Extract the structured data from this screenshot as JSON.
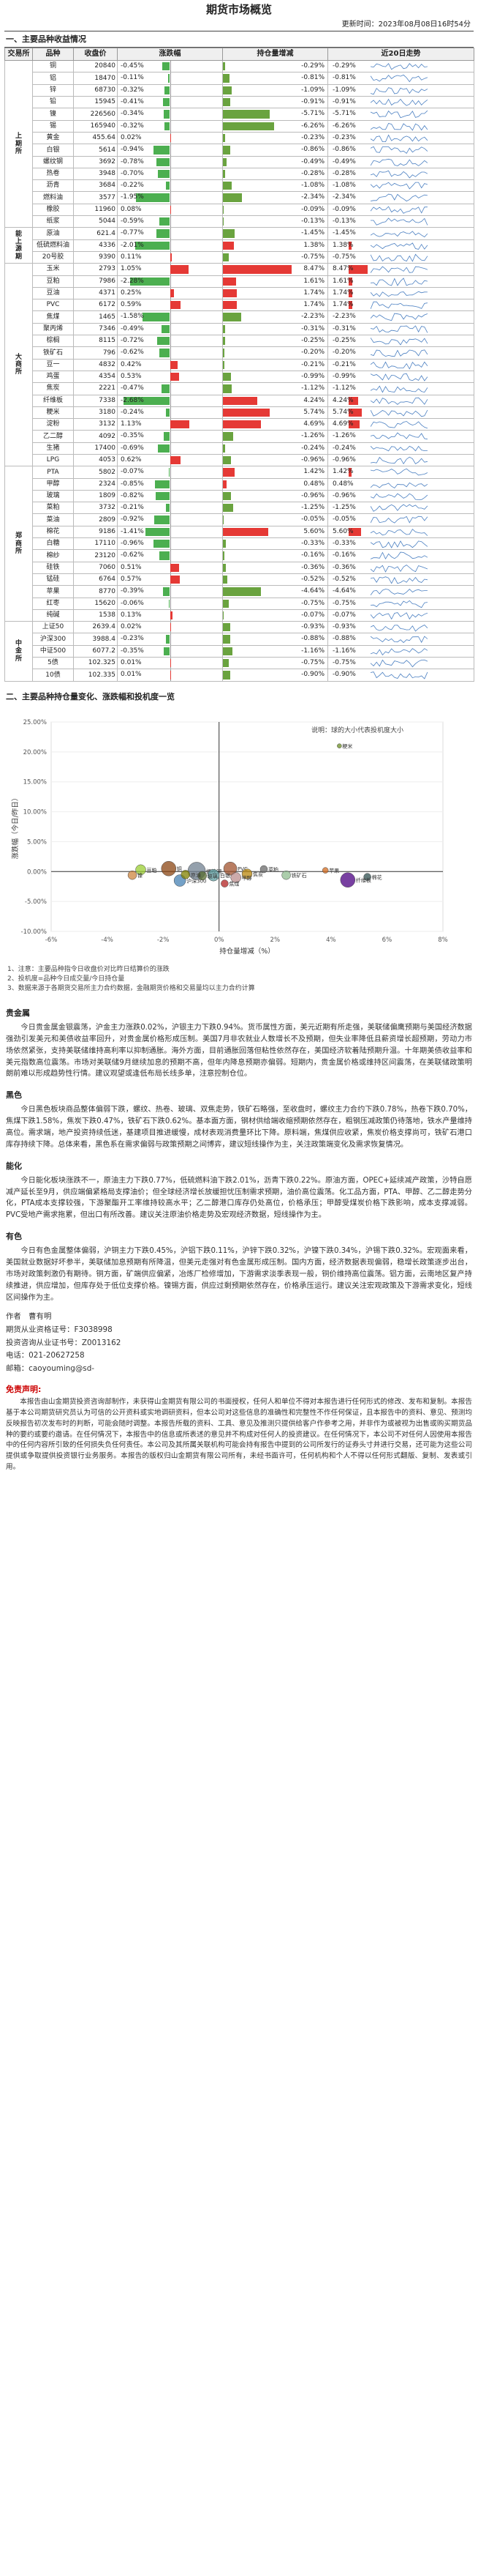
{
  "header": {
    "title": "期货市场概览",
    "date": "更新时间：2023年08月08日16时54分"
  },
  "section1": {
    "title": "一、主要品种收益情况",
    "columns": [
      "交易所",
      "品种",
      "收盘价",
      "涨跌幅",
      "持仓量增减",
      "近20日走势"
    ],
    "groups": [
      {
        "name": "上\n期\n所",
        "rows": [
          {
            "name": "铜",
            "price": "20840",
            "chg": -0.45,
            "chg_text": "-0.45%",
            "oi": -0.29,
            "oi_text": "-0.29%",
            "w": "-0.29%"
          },
          {
            "name": "铝",
            "price": "18470",
            "chg": -0.11,
            "chg_text": "-0.11%",
            "oi": -0.81,
            "oi_text": "-0.81%",
            "w": "-0.81%"
          },
          {
            "name": "锌",
            "price": "68730",
            "chg": -0.32,
            "chg_text": "-0.32%",
            "oi": -1.09,
            "oi_text": "-1.09%",
            "w": "-1.09%"
          },
          {
            "name": "铅",
            "price": "15945",
            "chg": -0.41,
            "chg_text": "-0.41%",
            "oi": -0.91,
            "oi_text": "-0.91%",
            "w": "-0.91%"
          },
          {
            "name": "镍",
            "price": "226560",
            "chg": -0.34,
            "chg_text": "-0.34%",
            "oi": -5.71,
            "oi_text": "-5.71%",
            "w": "-5.71%"
          },
          {
            "name": "锡",
            "price": "165940",
            "chg": -0.32,
            "chg_text": "-0.32%",
            "oi": -6.26,
            "oi_text": "-6.26%",
            "w": "-6.26%"
          },
          {
            "name": "黄金",
            "price": "455.64",
            "chg": 0.02,
            "chg_text": "0.02%",
            "oi": -0.23,
            "oi_text": "-0.23%",
            "w": "-0.23%"
          },
          {
            "name": "白银",
            "price": "5614",
            "chg": -0.94,
            "chg_text": "-0.94%",
            "oi": -0.86,
            "oi_text": "-0.86%",
            "w": "-0.86%"
          },
          {
            "name": "螺纹钢",
            "price": "3692",
            "chg": -0.78,
            "chg_text": "-0.78%",
            "oi": -0.49,
            "oi_text": "-0.49%",
            "w": "-0.49%"
          },
          {
            "name": "热卷",
            "price": "3948",
            "chg": -0.7,
            "chg_text": "-0.70%",
            "oi": -0.28,
            "oi_text": "-0.28%",
            "w": "-0.28%"
          },
          {
            "name": "沥青",
            "price": "3684",
            "chg": -0.22,
            "chg_text": "-0.22%",
            "oi": -1.08,
            "oi_text": "-1.08%",
            "w": "-1.08%"
          },
          {
            "name": "燃料油",
            "price": "3577",
            "chg": -1.95,
            "chg_text": "-1.95%",
            "oi": -2.34,
            "oi_text": "-2.34%",
            "w": "-2.34%"
          },
          {
            "name": "橡胶",
            "price": "11960",
            "chg": 0.08,
            "chg_text": "0.08%",
            "oi": -0.09,
            "oi_text": "-0.09%",
            "w": "-0.09%"
          },
          {
            "name": "纸浆",
            "price": "5044",
            "chg": -0.59,
            "chg_text": "-0.59%",
            "oi": -0.13,
            "oi_text": "-0.13%",
            "w": "-0.13%"
          }
        ]
      },
      {
        "name": "能\n上\n源\n期",
        "rows": [
          {
            "name": "原油",
            "price": "621.4",
            "chg": -0.77,
            "chg_text": "-0.77%",
            "oi": -1.45,
            "oi_text": "-1.45%",
            "w": "-1.45%"
          },
          {
            "name": "低硫燃料油",
            "price": "4336",
            "chg": -2.01,
            "chg_text": "-2.01%",
            "oi": 1.38,
            "oi_text": "1.38%",
            "w": "1.38%"
          },
          {
            "name": "20号胶",
            "price": "9390",
            "chg": 0.11,
            "chg_text": "0.11%",
            "oi": -0.75,
            "oi_text": "-0.75%",
            "w": "-0.75%"
          }
        ]
      },
      {
        "name": "大\n商\n所",
        "rows": [
          {
            "name": "玉米",
            "price": "2793",
            "chg": 1.05,
            "chg_text": "1.05%",
            "oi": 8.47,
            "oi_text": "8.47%",
            "w": "8.47%"
          },
          {
            "name": "豆粕",
            "price": "7986",
            "chg": -2.28,
            "chg_text": "-2.28%",
            "oi": 1.61,
            "oi_text": "1.61%",
            "w": "1.61%"
          },
          {
            "name": "豆油",
            "price": "4371",
            "chg": 0.25,
            "chg_text": "0.25%",
            "oi": 1.74,
            "oi_text": "1.74%",
            "w": "1.74%"
          },
          {
            "name": "PVC",
            "price": "6172",
            "chg": 0.59,
            "chg_text": "0.59%",
            "oi": 1.74,
            "oi_text": "1.74%",
            "w": "1.74%"
          },
          {
            "name": "焦煤",
            "price": "1465",
            "chg": -1.58,
            "chg_text": "-1.58%",
            "oi": -2.23,
            "oi_text": "-2.23%",
            "w": "-2.23%"
          },
          {
            "name": "聚丙烯",
            "price": "7346",
            "chg": -0.49,
            "chg_text": "-0.49%",
            "oi": -0.31,
            "oi_text": "-0.31%",
            "w": "-0.31%"
          },
          {
            "name": "棕榈",
            "price": "8115",
            "chg": -0.72,
            "chg_text": "-0.72%",
            "oi": -0.25,
            "oi_text": "-0.25%",
            "w": "-0.25%"
          },
          {
            "name": "铁矿石",
            "price": "796",
            "chg": -0.62,
            "chg_text": "-0.62%",
            "oi": -0.2,
            "oi_text": "-0.20%",
            "w": "-0.20%"
          },
          {
            "name": "豆一",
            "price": "4832",
            "chg": 0.42,
            "chg_text": "0.42%",
            "oi": -0.21,
            "oi_text": "-0.21%",
            "w": "-0.21%"
          },
          {
            "name": "鸡蛋",
            "price": "4354",
            "chg": 0.53,
            "chg_text": "0.53%",
            "oi": -0.99,
            "oi_text": "-0.99%",
            "w": "-0.99%"
          },
          {
            "name": "焦炭",
            "price": "2221",
            "chg": -0.47,
            "chg_text": "-0.47%",
            "oi": -1.12,
            "oi_text": "-1.12%",
            "w": "-1.12%"
          },
          {
            "name": "纤维板",
            "price": "7338",
            "chg": -2.68,
            "chg_text": "-2.68%",
            "oi": 4.24,
            "oi_text": "4.24%",
            "w": "4.24%"
          },
          {
            "name": "粳米",
            "price": "3180",
            "chg": -0.24,
            "chg_text": "-0.24%",
            "oi": 5.74,
            "oi_text": "5.74%",
            "w": "5.74%"
          },
          {
            "name": "淀粉",
            "price": "3132",
            "chg": 1.13,
            "chg_text": "1.13%",
            "oi": 4.69,
            "oi_text": "4.69%",
            "w": "4.69%"
          },
          {
            "name": "乙二醇",
            "price": "4092",
            "chg": -0.35,
            "chg_text": "-0.35%",
            "oi": -1.26,
            "oi_text": "-1.26%",
            "w": "-1.26%"
          },
          {
            "name": "生猪",
            "price": "17400",
            "chg": -0.69,
            "chg_text": "-0.69%",
            "oi": -0.24,
            "oi_text": "-0.24%",
            "w": "-0.24%"
          },
          {
            "name": "LPG",
            "price": "4053",
            "chg": 0.62,
            "chg_text": "0.62%",
            "oi": -0.96,
            "oi_text": "-0.96%",
            "w": "-0.96%"
          }
        ]
      },
      {
        "name": "郑\n商\n所",
        "rows": [
          {
            "name": "PTA",
            "price": "5802",
            "chg": -0.07,
            "chg_text": "-0.07%",
            "oi": 1.42,
            "oi_text": "1.42%",
            "w": "1.42%"
          },
          {
            "name": "甲醇",
            "price": "2324",
            "chg": -0.85,
            "chg_text": "-0.85%",
            "oi": 0.48,
            "oi_text": "0.48%",
            "w": "0.48%"
          },
          {
            "name": "玻璃",
            "price": "1809",
            "chg": -0.82,
            "chg_text": "-0.82%",
            "oi": -0.96,
            "oi_text": "-0.96%",
            "w": "-0.96%"
          },
          {
            "name": "菜粕",
            "price": "3732",
            "chg": -0.21,
            "chg_text": "-0.21%",
            "oi": -1.25,
            "oi_text": "-1.25%",
            "w": "-1.25%"
          },
          {
            "name": "菜油",
            "price": "2809",
            "chg": -0.92,
            "chg_text": "-0.92%",
            "oi": -0.05,
            "oi_text": "-0.05%",
            "w": "-0.05%"
          },
          {
            "name": "棉花",
            "price": "9186",
            "chg": -1.41,
            "chg_text": "-1.41%",
            "oi": 5.6,
            "oi_text": "5.60%",
            "w": "5.60%"
          },
          {
            "name": "白糖",
            "price": "17110",
            "chg": -0.96,
            "chg_text": "-0.96%",
            "oi": -0.33,
            "oi_text": "-0.33%",
            "w": "-0.33%"
          },
          {
            "name": "棉纱",
            "price": "23120",
            "chg": -0.62,
            "chg_text": "-0.62%",
            "oi": -0.16,
            "oi_text": "-0.16%",
            "w": "-0.16%"
          },
          {
            "name": "硅铁",
            "price": "7060",
            "chg": 0.51,
            "chg_text": "0.51%",
            "oi": -0.36,
            "oi_text": "-0.36%",
            "w": "-0.36%"
          },
          {
            "name": "锰硅",
            "price": "6764",
            "chg": 0.57,
            "chg_text": "0.57%",
            "oi": -0.52,
            "oi_text": "-0.52%",
            "w": "-0.52%"
          },
          {
            "name": "苹果",
            "price": "8770",
            "chg": -0.39,
            "chg_text": "-0.39%",
            "oi": -4.64,
            "oi_text": "-4.64%",
            "w": "-4.64%"
          },
          {
            "name": "红枣",
            "price": "15620",
            "chg": -0.06,
            "chg_text": "-0.06%",
            "oi": -0.75,
            "oi_text": "-0.75%",
            "w": "-0.75%"
          },
          {
            "name": "纯碱",
            "price": "1538",
            "chg": 0.13,
            "chg_text": "0.13%",
            "oi": -0.07,
            "oi_text": "-0.07%",
            "w": "-0.07%"
          }
        ]
      },
      {
        "name": "中\n金\n所",
        "rows": [
          {
            "name": "上证50",
            "price": "2639.4",
            "chg": 0.02,
            "chg_text": "0.02%",
            "oi": -0.93,
            "oi_text": "-0.93%",
            "w": "-0.93%"
          },
          {
            "name": "沪深300",
            "price": "3988.4",
            "chg": -0.23,
            "chg_text": "-0.23%",
            "oi": -0.88,
            "oi_text": "-0.88%",
            "w": "-0.88%"
          },
          {
            "name": "中证500",
            "price": "6077.2",
            "chg": -0.35,
            "chg_text": "-0.35%",
            "oi": -1.16,
            "oi_text": "-1.16%",
            "w": "-1.16%"
          },
          {
            "name": "5债",
            "price": "102.325",
            "chg": 0.01,
            "chg_text": "0.01%",
            "oi": -0.75,
            "oi_text": "-0.75%",
            "w": "-0.75%"
          },
          {
            "name": "10债",
            "price": "102.335",
            "chg": 0.01,
            "chg_text": "0.01%",
            "oi": -0.9,
            "oi_text": "-0.90%",
            "w": "-0.90%"
          }
        ]
      }
    ]
  },
  "section2": {
    "title": "二、主要品种持仓量变化、涨跌幅和投机度一览",
    "notes": [
      "1、注意：主要品种指令日收盘价对比昨日结算价的涨跌",
      "2、投机度=品种今日成交量/今日持仓量",
      "3、数据来源于各期货交易所主力合约数据，金融期货价格和交易量均以主力合约计算"
    ]
  },
  "chart_data": {
    "type": "scatter",
    "title": "",
    "legend_note": "说明：球的大小代表投机度大小",
    "xlabel": "持仓量增减（%）",
    "ylabel": "涨跌幅（今日/昨日）",
    "xlim": [
      -6,
      8
    ],
    "ylim": [
      -10,
      25
    ],
    "x_ticks": [
      "-6%",
      "-4%",
      "-2%",
      "0%",
      "2%",
      "4%",
      "6%",
      "8%"
    ],
    "y_ticks": [
      "25.00%",
      "20.00%",
      "15.00%",
      "10.00%",
      "5.00%",
      "0.00%",
      "-5.00%",
      "-10.00%"
    ],
    "points": [
      {
        "label": "粳米",
        "x": 4.3,
        "y": 21.0,
        "r": 3
      },
      {
        "label": "铜",
        "x": -1.8,
        "y": 0.5,
        "r": 10
      },
      {
        "label": "沪深300",
        "x": -1.4,
        "y": -1.5,
        "r": 8
      },
      {
        "label": "豆粕",
        "x": -2.8,
        "y": 0.3,
        "r": 7
      },
      {
        "label": "镍",
        "x": -3.1,
        "y": -0.6,
        "r": 6
      },
      {
        "label": "螺纹钢",
        "x": -0.8,
        "y": 0.1,
        "r": 12
      },
      {
        "label": "PVC",
        "x": 0.4,
        "y": 0.5,
        "r": 9
      },
      {
        "label": "白银",
        "x": -0.2,
        "y": -0.6,
        "r": 8
      },
      {
        "label": "焦炭",
        "x": 1.0,
        "y": -0.4,
        "r": 7
      },
      {
        "label": "玻璃",
        "x": -0.6,
        "y": -0.7,
        "r": 6
      },
      {
        "label": "甲醇",
        "x": 0.6,
        "y": -1.0,
        "r": 7
      },
      {
        "label": "菜粕",
        "x": 1.6,
        "y": 0.4,
        "r": 5
      },
      {
        "label": "铁矿石",
        "x": 2.4,
        "y": -0.6,
        "r": 6
      },
      {
        "label": "棉花",
        "x": 5.3,
        "y": -0.9,
        "r": 5
      },
      {
        "label": "苹果",
        "x": 3.8,
        "y": 0.2,
        "r": 4
      },
      {
        "label": "纤维板",
        "x": 4.6,
        "y": -1.4,
        "r": 10
      },
      {
        "label": "原油",
        "x": -1.2,
        "y": -0.5,
        "r": 6
      },
      {
        "label": "焦煤",
        "x": 0.2,
        "y": -2.0,
        "r": 5
      }
    ]
  },
  "sections": [
    {
      "title": "贵金属",
      "text": "今日贵金属金银震荡，沪金主力涨跌0.02%，沪银主力下跌0.94%。货币属性方面，美元近期有所走强，美联储偏鹰预期与美国经济数据强劲引发美元和美债收益率回升，对贵金属价格形成压制。美国7月非农就业人数增长不及预期，但失业率降低且薪资增长超预期，劳动力市场依然紧张，支持美联储维持高利率以抑制通胀。海外方面，目前通胀回落但粘性依然存在，美国经济软着陆预期升温。十年期美债收益率和美元指数高位震荡。市场对美联储9月继续加息的预期不高，但年内降息预期亦偏弱。短期内，贵金属价格或维持区间震荡，在美联储政策明朗前难以形成趋势性行情。建议观望或逢低布局长线多单，注意控制仓位。"
    },
    {
      "title": "黑色",
      "text": "今日黑色板块商品整体偏弱下跌，螺纹、热卷、玻璃、双焦走势，铁矿石略强，至收盘时，螺纹主力合约下跌0.78%，热卷下跌0.70%，焦煤下跌1.58%，焦炭下跌0.47%，铁矿石下跌0.62%。基本面方面，钢材供给端收缩预期依然存在，粗钢压减政策仍待落地，铁水产量维持高位。需求端，地产投资持续低迷，基建项目推进缓慢，成材表观消费量环比下降。原料端，焦煤供应收紧，焦炭价格支撑尚可，铁矿石港口库存持续下降。总体来看，黑色系在需求偏弱与政策预期之间博弈，建议短线操作为主，关注政策端变化及需求恢复情况。"
    },
    {
      "title": "能化",
      "text": "今日能化板块涨跌不一，原油主力下跌0.77%，低硫燃料油下跌2.01%，沥青下跌0.22%。原油方面，OPEC+延续减产政策，沙特自愿减产延长至9月，供应端偏紧格局支撑油价；但全球经济增长放缓担忧压制需求预期，油价高位震荡。化工品方面，PTA、甲醇、乙二醇走势分化，PTA成本支撑较强，下游聚酯开工率维持较高水平；乙二醇港口库存仍处高位，价格承压；甲醇受煤炭价格下跌影响，成本支撑减弱。PVC受地产需求拖累，但出口有所改善。建议关注原油价格走势及宏观经济数据，短线操作为主。"
    },
    {
      "title": "有色",
      "text": "今日有色金属整体偏弱，沪铜主力下跌0.45%，沪铝下跌0.11%，沪锌下跌0.32%，沪镍下跌0.34%，沪锡下跌0.32%。宏观面来看，美国就业数据好坏参半，美联储加息预期有所降温，但美元走强对有色金属形成压制。国内方面，经济数据表现偏弱，稳增长政策逐步出台，市场对政策刺激仍有期待。铜方面，矿端供应偏紧，冶炼厂检修增加，下游需求淡季表现一般，铜价维持高位震荡。铝方面，云南地区复产持续推进，供应增加，但库存处于低位支撑价格。镍锡方面，供应过剩预期依然存在，价格承压运行。建议关注宏观政策及下游需求变化，短线区间操作为主。"
    }
  ],
  "contact": {
    "author": "作者　曹有明",
    "qual1": "期货从业资格证号：F3038998",
    "qual2": "投资咨询从业证书号：Z0013162",
    "phone": "电话：021-20627258",
    "email": "邮箱：caoyouming@sd-"
  },
  "disclaimer": {
    "title": "免责声明:",
    "text": "本报告由山金期货投资咨询部制作，未获得山金期货有限公司的书面授权，任何人和单位不得对本报告进行任何形式的修改、发布和复制。本报告基于本公司期货研究员认为可信的公开资料或实地调研资料，但本公司对这些信息的准确性和完整性不作任何保证，且本报告中的资料、意见、预测均反映报告初次发布时的判断，可能会随时调整。本报告所载的资料、工具、意见及推测只提供给客户作参考之用，并非作为或被视为出售或购买期货品种的要约或要约邀请。在任何情况下，本报告中的信息或所表述的意见并不构成对任何人的投资建议。在任何情况下，本公司不对任何人因使用本报告中的任何内容所引致的任何损失负任何责任。本公司及其所属关联机构可能会持有报告中提到的公司所发行的证券头寸并进行交易，还可能为这些公司提供或争取提供投资银行业务服务。本报告的版权归山金期货有限公司所有，未经书面许可，任何机构和个人不得以任何形式翻版、复制、发表或引用。"
  }
}
